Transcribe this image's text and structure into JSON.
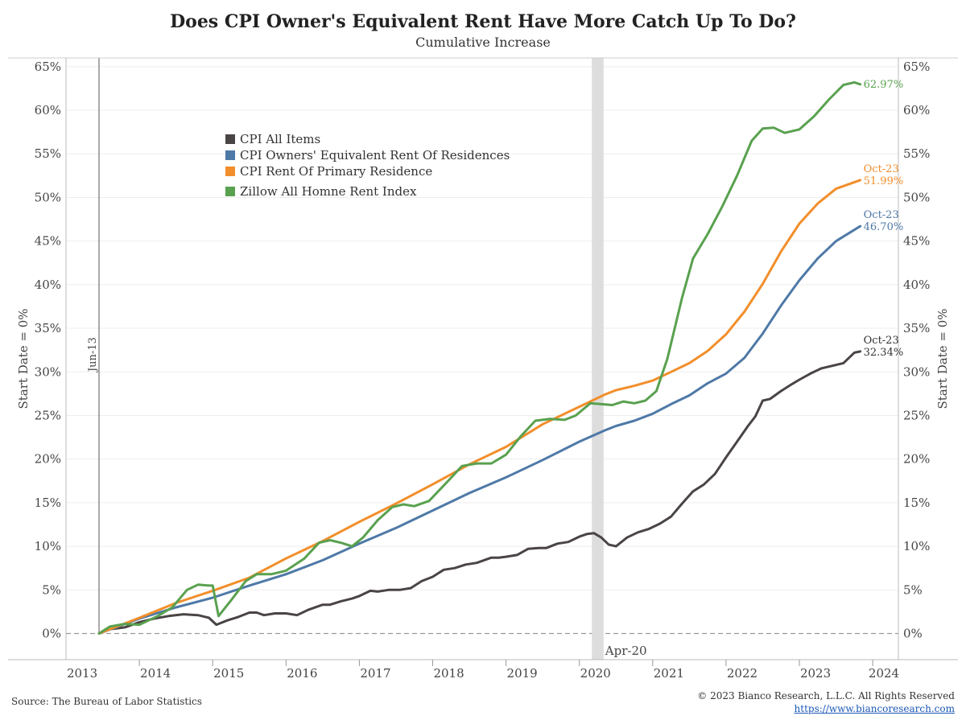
{
  "chart_data": {
    "type": "line",
    "title": "Does CPI Owner's Equivalent Rent Have More Catch Up To Do?",
    "subtitle": "Cumulative Increase",
    "ylabel": "Start Date = 0%",
    "ylim": [
      -3,
      66
    ],
    "y_ticks": [
      "0%",
      "5%",
      "10%",
      "15%",
      "20%",
      "25%",
      "30%",
      "35%",
      "40%",
      "45%",
      "50%",
      "55%",
      "60%",
      "65%"
    ],
    "x_ticks": [
      "2013",
      "2014",
      "2015",
      "2016",
      "2017",
      "2018",
      "2019",
      "2020",
      "2021",
      "2022",
      "2023",
      "2024"
    ],
    "xlim": [
      2013.0,
      2024.35
    ],
    "grid": true,
    "legend_position": "upper-left",
    "annotations": {
      "start_line": {
        "x": 2013.45,
        "label": "Jun-13"
      },
      "shaded_band": {
        "x0": 2020.17,
        "x1": 2020.33,
        "label": "Apr-20"
      }
    },
    "series": [
      {
        "name": "CPI All Items",
        "color": "#4a4444",
        "end_date": "Oct-23",
        "end_label": "32.34%",
        "points": [
          [
            2013.45,
            0
          ],
          [
            2013.6,
            0.5
          ],
          [
            2013.8,
            0.7
          ],
          [
            2014.0,
            1.3
          ],
          [
            2014.2,
            1.7
          ],
          [
            2014.4,
            2.0
          ],
          [
            2014.6,
            2.2
          ],
          [
            2014.8,
            2.1
          ],
          [
            2014.95,
            1.8
          ],
          [
            2015.05,
            1.0
          ],
          [
            2015.2,
            1.5
          ],
          [
            2015.35,
            1.9
          ],
          [
            2015.5,
            2.4
          ],
          [
            2015.6,
            2.4
          ],
          [
            2015.7,
            2.1
          ],
          [
            2015.85,
            2.3
          ],
          [
            2016.0,
            2.3
          ],
          [
            2016.15,
            2.1
          ],
          [
            2016.3,
            2.7
          ],
          [
            2016.5,
            3.3
          ],
          [
            2016.6,
            3.3
          ],
          [
            2016.75,
            3.7
          ],
          [
            2016.9,
            4.0
          ],
          [
            2017.0,
            4.3
          ],
          [
            2017.15,
            4.9
          ],
          [
            2017.25,
            4.8
          ],
          [
            2017.4,
            5.0
          ],
          [
            2017.55,
            5.0
          ],
          [
            2017.7,
            5.2
          ],
          [
            2017.85,
            6.0
          ],
          [
            2018.0,
            6.5
          ],
          [
            2018.15,
            7.3
          ],
          [
            2018.3,
            7.5
          ],
          [
            2018.45,
            7.9
          ],
          [
            2018.6,
            8.1
          ],
          [
            2018.8,
            8.7
          ],
          [
            2018.9,
            8.7
          ],
          [
            2019.0,
            8.8
          ],
          [
            2019.15,
            9.0
          ],
          [
            2019.3,
            9.7
          ],
          [
            2019.45,
            9.8
          ],
          [
            2019.55,
            9.8
          ],
          [
            2019.7,
            10.3
          ],
          [
            2019.85,
            10.5
          ],
          [
            2020.0,
            11.1
          ],
          [
            2020.1,
            11.4
          ],
          [
            2020.2,
            11.5
          ],
          [
            2020.3,
            11.0
          ],
          [
            2020.4,
            10.2
          ],
          [
            2020.5,
            10.0
          ],
          [
            2020.65,
            11.0
          ],
          [
            2020.8,
            11.6
          ],
          [
            2020.95,
            12.0
          ],
          [
            2021.1,
            12.6
          ],
          [
            2021.25,
            13.4
          ],
          [
            2021.4,
            14.9
          ],
          [
            2021.55,
            16.3
          ],
          [
            2021.7,
            17.1
          ],
          [
            2021.85,
            18.3
          ],
          [
            2022.0,
            20.2
          ],
          [
            2022.15,
            22.0
          ],
          [
            2022.3,
            23.8
          ],
          [
            2022.4,
            24.9
          ],
          [
            2022.5,
            26.7
          ],
          [
            2022.6,
            26.9
          ],
          [
            2022.75,
            27.8
          ],
          [
            2022.9,
            28.6
          ],
          [
            2023.0,
            29.1
          ],
          [
            2023.15,
            29.8
          ],
          [
            2023.3,
            30.4
          ],
          [
            2023.45,
            30.7
          ],
          [
            2023.6,
            31.0
          ],
          [
            2023.75,
            32.2
          ],
          [
            2023.83,
            32.34
          ]
        ]
      },
      {
        "name": "CPI Owners' Equivalent Rent Of Residences",
        "color": "#4e79a7",
        "end_date": "Oct-23",
        "end_label": "46.70%",
        "points": [
          [
            2013.45,
            0
          ],
          [
            2014.0,
            1.7
          ],
          [
            2014.5,
            3.0
          ],
          [
            2015.0,
            4.1
          ],
          [
            2015.5,
            5.5
          ],
          [
            2016.0,
            6.8
          ],
          [
            2016.5,
            8.4
          ],
          [
            2017.0,
            10.3
          ],
          [
            2017.5,
            12.1
          ],
          [
            2018.0,
            14.1
          ],
          [
            2018.5,
            16.1
          ],
          [
            2019.0,
            17.9
          ],
          [
            2019.5,
            19.9
          ],
          [
            2020.0,
            22.0
          ],
          [
            2020.35,
            23.3
          ],
          [
            2020.5,
            23.8
          ],
          [
            2020.75,
            24.4
          ],
          [
            2021.0,
            25.2
          ],
          [
            2021.25,
            26.3
          ],
          [
            2021.5,
            27.3
          ],
          [
            2021.75,
            28.7
          ],
          [
            2022.0,
            29.8
          ],
          [
            2022.25,
            31.6
          ],
          [
            2022.5,
            34.4
          ],
          [
            2022.75,
            37.6
          ],
          [
            2023.0,
            40.5
          ],
          [
            2023.25,
            43.0
          ],
          [
            2023.5,
            45.0
          ],
          [
            2023.83,
            46.7
          ]
        ]
      },
      {
        "name": "CPI Rent Of Primary Residence",
        "color": "#f28e2b",
        "end_date": "Oct-23",
        "end_label": "51.99%",
        "points": [
          [
            2013.45,
            0
          ],
          [
            2014.0,
            1.8
          ],
          [
            2014.5,
            3.5
          ],
          [
            2015.0,
            4.9
          ],
          [
            2015.5,
            6.4
          ],
          [
            2016.0,
            8.6
          ],
          [
            2016.5,
            10.6
          ],
          [
            2017.0,
            12.8
          ],
          [
            2017.5,
            14.9
          ],
          [
            2018.0,
            17.1
          ],
          [
            2018.5,
            19.4
          ],
          [
            2019.0,
            21.4
          ],
          [
            2019.5,
            24.0
          ],
          [
            2020.0,
            26.0
          ],
          [
            2020.35,
            27.4
          ],
          [
            2020.5,
            27.9
          ],
          [
            2020.75,
            28.4
          ],
          [
            2021.0,
            29.0
          ],
          [
            2021.25,
            30.0
          ],
          [
            2021.5,
            31.0
          ],
          [
            2021.75,
            32.4
          ],
          [
            2022.0,
            34.3
          ],
          [
            2022.25,
            36.9
          ],
          [
            2022.5,
            40.1
          ],
          [
            2022.75,
            43.8
          ],
          [
            2023.0,
            47.0
          ],
          [
            2023.25,
            49.3
          ],
          [
            2023.5,
            51.0
          ],
          [
            2023.83,
            51.99
          ]
        ]
      },
      {
        "name": "Zillow All Homne Rent Index",
        "color": "#59a14f",
        "end_date": "",
        "end_label": "62.97%",
        "points": [
          [
            2013.45,
            0
          ],
          [
            2013.6,
            0.8
          ],
          [
            2013.8,
            1.1
          ],
          [
            2014.0,
            1.0
          ],
          [
            2014.25,
            2.0
          ],
          [
            2014.45,
            3.0
          ],
          [
            2014.65,
            5.0
          ],
          [
            2014.8,
            5.6
          ],
          [
            2014.95,
            5.5
          ],
          [
            2015.0,
            5.5
          ],
          [
            2015.08,
            2.0
          ],
          [
            2015.25,
            3.8
          ],
          [
            2015.45,
            6.0
          ],
          [
            2015.6,
            6.8
          ],
          [
            2015.8,
            6.8
          ],
          [
            2016.0,
            7.2
          ],
          [
            2016.25,
            8.6
          ],
          [
            2016.45,
            10.4
          ],
          [
            2016.6,
            10.7
          ],
          [
            2016.75,
            10.4
          ],
          [
            2016.9,
            10.0
          ],
          [
            2017.05,
            11.0
          ],
          [
            2017.25,
            13.0
          ],
          [
            2017.45,
            14.5
          ],
          [
            2017.6,
            14.8
          ],
          [
            2017.75,
            14.6
          ],
          [
            2017.95,
            15.2
          ],
          [
            2018.2,
            17.4
          ],
          [
            2018.4,
            19.2
          ],
          [
            2018.6,
            19.5
          ],
          [
            2018.8,
            19.5
          ],
          [
            2019.0,
            20.5
          ],
          [
            2019.2,
            22.6
          ],
          [
            2019.4,
            24.4
          ],
          [
            2019.6,
            24.6
          ],
          [
            2019.8,
            24.5
          ],
          [
            2019.95,
            25.0
          ],
          [
            2020.15,
            26.4
          ],
          [
            2020.3,
            26.3
          ],
          [
            2020.45,
            26.2
          ],
          [
            2020.6,
            26.6
          ],
          [
            2020.75,
            26.4
          ],
          [
            2020.9,
            26.7
          ],
          [
            2021.05,
            27.8
          ],
          [
            2021.2,
            31.5
          ],
          [
            2021.4,
            38.5
          ],
          [
            2021.55,
            43.0
          ],
          [
            2021.75,
            45.8
          ],
          [
            2021.95,
            49.0
          ],
          [
            2022.15,
            52.5
          ],
          [
            2022.35,
            56.5
          ],
          [
            2022.5,
            57.9
          ],
          [
            2022.65,
            58.0
          ],
          [
            2022.8,
            57.4
          ],
          [
            2023.0,
            57.8
          ],
          [
            2023.2,
            59.3
          ],
          [
            2023.4,
            61.2
          ],
          [
            2023.6,
            62.9
          ],
          [
            2023.75,
            63.2
          ],
          [
            2023.83,
            62.97
          ]
        ]
      }
    ]
  },
  "footer": {
    "source": "Source: The Bureau of Labor Statistics",
    "copyright": "© 2023 Bianco Research, L.L.C. All Rights Reserved",
    "url": "https://www.biancoresearch.com"
  }
}
